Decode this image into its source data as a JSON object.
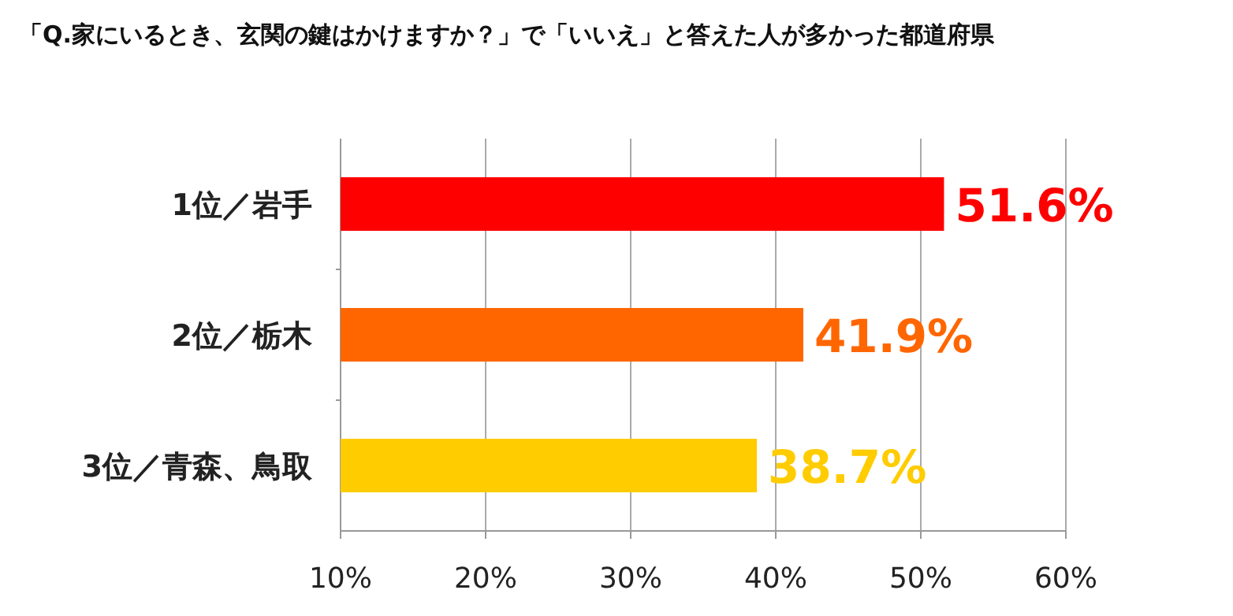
{
  "chart_data": {
    "type": "bar",
    "orientation": "horizontal",
    "title": "「Q.家にいるとき、玄関の鍵はかけますか？」で「いいえ」と答えた人が多かった都道府県",
    "categories": [
      "1位／岩手",
      "2位／栃木",
      "3位／青森、鳥取"
    ],
    "values": [
      51.6,
      41.9,
      38.7
    ],
    "colors": [
      "#ff0000",
      "#ff6600",
      "#ffcc00"
    ],
    "value_labels": [
      "51.6%",
      "41.9%",
      "38.7%"
    ],
    "xlim": [
      10,
      60
    ],
    "xticks": [
      {
        "value": 10,
        "label": "10%"
      },
      {
        "value": 20,
        "label": "20%"
      },
      {
        "value": 30,
        "label": "30%"
      },
      {
        "value": 40,
        "label": "40%"
      },
      {
        "value": 50,
        "label": "50%"
      },
      {
        "value": 60,
        "label": "60%"
      }
    ],
    "grid": "x"
  }
}
